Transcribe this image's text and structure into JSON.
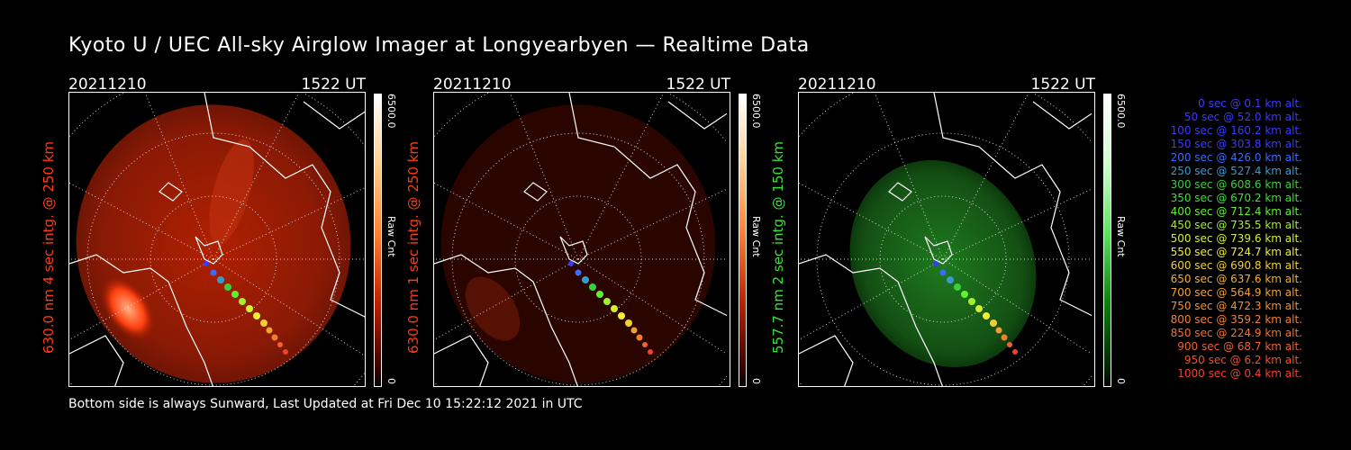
{
  "title": "Kyoto U / UEC All-sky Airglow Imager at Longyearbyen — Realtime Data",
  "panels": [
    {
      "date": "20211210",
      "time": "1522 UT",
      "label": "630.0 nm 4 sec intg. @ 250 km",
      "label_color": "#ff3a1a",
      "glow": "red",
      "cmax": "6500.0",
      "cunit": "Raw Cnt",
      "cmin": "0"
    },
    {
      "date": "20211210",
      "time": "1522 UT",
      "label": "630.0 nm 1 sec intg. @ 250 km",
      "label_color": "#ff3a1a",
      "glow": "darkred",
      "cmax": "6500.0",
      "cunit": "Raw Cnt",
      "cmin": "0"
    },
    {
      "date": "20211210",
      "time": "1522 UT",
      "label": "557.7 nm 2 sec intg. @ 150 km",
      "label_color": "#3ae03a",
      "glow": "green",
      "cmax": "6500.0",
      "cunit": "Raw Cnt",
      "cmin": "0"
    }
  ],
  "footer": "Bottom side is always Sunward, Last Updated at Fri Dec 10 15:22:12 2021 in UTC",
  "legend": [
    {
      "text": "0 sec @   0.1 km alt.",
      "color": "#3a3aff"
    },
    {
      "text": "50 sec @  52.0 km alt.",
      "color": "#3a3aff"
    },
    {
      "text": "100 sec @ 160.2 km alt.",
      "color": "#3a3aff"
    },
    {
      "text": "150 sec @ 303.8 km alt.",
      "color": "#3a3aff"
    },
    {
      "text": "200 sec @ 426.0 km alt.",
      "color": "#3a6aff"
    },
    {
      "text": "250 sec @ 527.4 km alt.",
      "color": "#3a9ad0"
    },
    {
      "text": "300 sec @ 608.6 km alt.",
      "color": "#3ad03a"
    },
    {
      "text": "350 sec @ 670.2 km alt.",
      "color": "#3ae03a"
    },
    {
      "text": "400 sec @ 712.4 km alt.",
      "color": "#60f030"
    },
    {
      "text": "450 sec @ 735.5 km alt.",
      "color": "#a0f030"
    },
    {
      "text": "500 sec @ 739.6 km alt.",
      "color": "#d0f030"
    },
    {
      "text": "550 sec @ 724.7 km alt.",
      "color": "#f0f030"
    },
    {
      "text": "600 sec @ 690.8 km alt.",
      "color": "#f0d030"
    },
    {
      "text": "650 sec @ 637.6 km alt.",
      "color": "#f0b030"
    },
    {
      "text": "700 sec @ 564.9 km alt.",
      "color": "#f0a030"
    },
    {
      "text": "750 sec @ 472.3 km alt.",
      "color": "#f09030"
    },
    {
      "text": "800 sec @ 359.2 km alt.",
      "color": "#f08030"
    },
    {
      "text": "850 sec @ 224.9 km alt.",
      "color": "#f07030"
    },
    {
      "text": "900 sec @  68.7 km alt.",
      "color": "#f06030"
    },
    {
      "text": "950 sec @   6.2 km alt.",
      "color": "#f05030"
    },
    {
      "text": "1000 sec @   0.4 km alt.",
      "color": "#f04030"
    }
  ]
}
